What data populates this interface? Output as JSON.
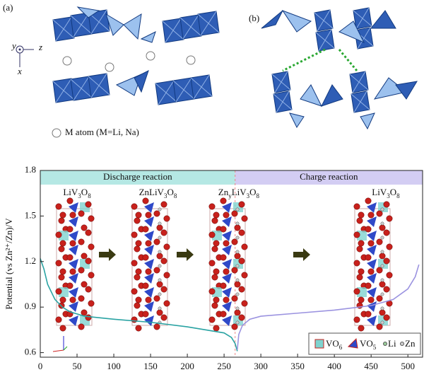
{
  "panel_a": {
    "label": "(a)",
    "axes": [
      "y",
      "z",
      "x"
    ],
    "note": "M atom (M=Li, Na)"
  },
  "panel_b": {
    "label": "(b)"
  },
  "chart_data": {
    "type": "line",
    "ylabel": "Potential (vs Zn²⁺/Zn)/V",
    "xlim": [
      0,
      520
    ],
    "xticks": [
      0,
      50,
      100,
      150,
      200,
      250,
      300,
      350,
      400,
      450,
      500
    ],
    "ylim": [
      0.57,
      1.8
    ],
    "yticks": [
      0.6,
      0.9,
      1.2,
      1.5,
      1.8
    ],
    "series": [
      {
        "color": "#2aa3a3",
        "x": [
          0,
          5,
          10,
          20,
          30,
          40,
          60,
          80,
          100,
          150,
          200,
          250,
          260,
          265,
          268
        ],
        "values": [
          1.22,
          1.15,
          1.05,
          0.95,
          0.9,
          0.87,
          0.84,
          0.83,
          0.82,
          0.8,
          0.77,
          0.73,
          0.7,
          0.66,
          0.61
        ]
      },
      {
        "color": "#9b93e0",
        "x": [
          268,
          270,
          275,
          285,
          300,
          350,
          400,
          450,
          480,
          500,
          510,
          515
        ],
        "values": [
          0.62,
          0.72,
          0.78,
          0.82,
          0.84,
          0.86,
          0.88,
          0.91,
          0.95,
          1.02,
          1.1,
          1.18
        ]
      }
    ],
    "phases": [
      {
        "label": "Discharge reaction",
        "color": "#b5e8e4",
        "range": [
          0,
          265
        ]
      },
      {
        "label": "Charge reaction",
        "color": "#d3cdf3",
        "range": [
          265,
          520
        ]
      }
    ],
    "structures": [
      {
        "parts": [
          "LiV",
          "3",
          "O",
          "8"
        ],
        "x": 50
      },
      {
        "parts": [
          "ZnLiV",
          "3",
          "O",
          "8"
        ],
        "x": 160
      },
      {
        "parts": [
          "Zn",
          "y",
          "LiV",
          "3",
          "O",
          "8"
        ],
        "x": 270
      },
      {
        "parts": [
          "LiV",
          "3",
          "O",
          "8"
        ],
        "x": 470
      }
    ],
    "structure_legend": [
      {
        "parts": [
          "VO",
          "6"
        ]
      },
      {
        "parts": [
          "VO",
          "5"
        ]
      },
      {
        "parts": [
          "Li"
        ]
      },
      {
        "parts": [
          "Zn"
        ]
      }
    ]
  }
}
